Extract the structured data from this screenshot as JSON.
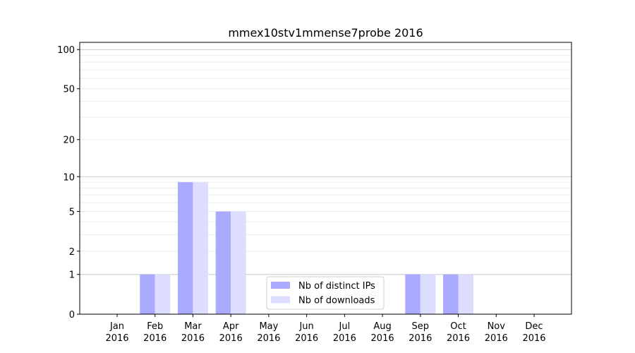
{
  "chart_data": {
    "type": "bar",
    "title": "mmex10stv1mmense7probe 2016",
    "xlabel": "",
    "ylabel": "",
    "yscale": "symlog (log10(1+y))",
    "ylim": [
      0,
      113
    ],
    "yticks": [
      0,
      1,
      2,
      5,
      10,
      20,
      50,
      100
    ],
    "ytick_labels": [
      "0",
      "1",
      "2",
      "5",
      "10",
      "20",
      "50",
      "100"
    ],
    "grid": true,
    "legend_position": "bottom-center",
    "categories": [
      "Jan\n2016",
      "Feb\n2016",
      "Mar\n2016",
      "Apr\n2016",
      "May\n2016",
      "Jun\n2016",
      "Jul\n2016",
      "Aug\n2016",
      "Sep\n2016",
      "Oct\n2016",
      "Nov\n2016",
      "Dec\n2016"
    ],
    "series": [
      {
        "name": "Nb of distinct IPs",
        "color": "#aaaaff",
        "values": [
          0,
          1,
          9,
          5,
          0,
          0,
          0,
          0,
          1,
          1,
          0,
          0
        ]
      },
      {
        "name": "Nb of downloads",
        "color": "#ddddff",
        "values": [
          0,
          1,
          9,
          5,
          0,
          0,
          0,
          0,
          1,
          1,
          0,
          0
        ]
      }
    ]
  }
}
